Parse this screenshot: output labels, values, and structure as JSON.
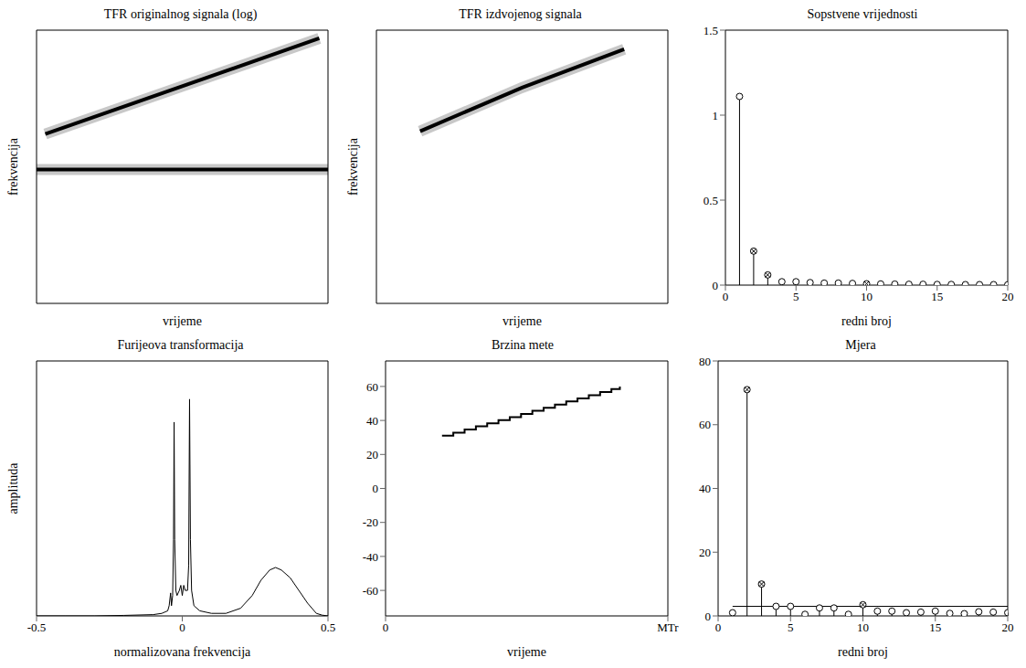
{
  "chart_data": [
    {
      "type": "tfr",
      "title": "TFR originalnog signala (log)",
      "xlabel": "vrijeme",
      "ylabel": "frekvencija",
      "xlim": [
        0,
        1
      ],
      "ylim": [
        0,
        1
      ],
      "tick_labels": false,
      "color": "#000000",
      "components": [
        {
          "x": [
            0.03,
            0.97
          ],
          "y": [
            0.62,
            0.97
          ]
        },
        {
          "x": [
            0,
            1
          ],
          "y": [
            0.49,
            0.49
          ]
        }
      ]
    },
    {
      "type": "tfr",
      "title": "TFR izdvojenog signala",
      "xlabel": "vrijeme",
      "ylabel": "frekvencija",
      "xlim": [
        0,
        1
      ],
      "ylim": [
        0,
        1
      ],
      "tick_labels": false,
      "color": "#000000",
      "components": [
        {
          "x": [
            0.15,
            0.5,
            0.85
          ],
          "y": [
            0.63,
            0.79,
            0.93
          ]
        }
      ]
    },
    {
      "type": "stem",
      "title": "Sopstvene vrijednosti",
      "xlabel": "redni broj",
      "xlim": [
        0,
        20
      ],
      "xticks": [
        0,
        5,
        10,
        15,
        20
      ],
      "ylim": [
        0,
        1.5
      ],
      "yticks": [
        0,
        0.5,
        1,
        1.5
      ],
      "marker": "circle",
      "color": "#000000",
      "x": [
        1,
        2,
        3,
        4,
        5,
        6,
        7,
        8,
        9,
        10,
        11,
        12,
        13,
        14,
        15,
        16,
        17,
        18,
        19,
        20
      ],
      "values": [
        1.11,
        0.2,
        0.06,
        0.02,
        0.02,
        0.015,
        0.012,
        0.012,
        0.01,
        0.008,
        0.007,
        0.006,
        0.005,
        0.005,
        0.004,
        0.004,
        0.003,
        0.003,
        0.003,
        0.002
      ],
      "selected": [
        2,
        3,
        10
      ]
    },
    {
      "type": "line",
      "title": "Furijeova transformacija",
      "xlabel": "normalizovana frekvencija",
      "ylabel": "amplituda",
      "xlim": [
        -0.5,
        0.5
      ],
      "xticks": [
        -0.5,
        0,
        0.5
      ],
      "ylim": [
        0,
        1
      ],
      "tick_labels": "x",
      "color": "#000000",
      "x": [
        -0.5,
        -0.4,
        -0.3,
        -0.2,
        -0.1,
        -0.07,
        -0.05,
        -0.045,
        -0.04,
        -0.037,
        -0.033,
        -0.03,
        -0.028,
        -0.026,
        -0.022,
        -0.018,
        -0.01,
        -0.005,
        0,
        0.005,
        0.01,
        0.018,
        0.022,
        0.025,
        0.028,
        0.032,
        0.04,
        0.06,
        0.1,
        0.15,
        0.2,
        0.24,
        0.27,
        0.3,
        0.32,
        0.34,
        0.37,
        0.4,
        0.43,
        0.46,
        0.48,
        0.5
      ],
      "values": [
        0,
        0,
        0,
        0.002,
        0.005,
        0.01,
        0.02,
        0.04,
        0.09,
        0.04,
        0.08,
        0.3,
        0.76,
        0.3,
        0.1,
        0.08,
        0.1,
        0.12,
        0.08,
        0.12,
        0.1,
        0.1,
        0.2,
        0.85,
        0.3,
        0.1,
        0.04,
        0.02,
        0.01,
        0.01,
        0.03,
        0.08,
        0.14,
        0.18,
        0.19,
        0.18,
        0.15,
        0.1,
        0.05,
        0.01,
        0.003,
        0
      ]
    },
    {
      "type": "line",
      "line_style": "step",
      "title": "Brzina mete",
      "xlabel": "vrijeme",
      "xlim": [
        0,
        1
      ],
      "xticks": [
        0,
        {
          "value": 1,
          "label": "MTr"
        }
      ],
      "ylim": [
        -75,
        75
      ],
      "yticks": [
        -60,
        -40,
        -20,
        0,
        20,
        40,
        60
      ],
      "color": "#000000",
      "x": [
        0.2,
        0.24,
        0.28,
        0.32,
        0.36,
        0.4,
        0.44,
        0.48,
        0.52,
        0.56,
        0.6,
        0.64,
        0.68,
        0.72,
        0.76,
        0.8,
        0.83
      ],
      "values": [
        31,
        32.8,
        34.7,
        36.5,
        38.3,
        40.2,
        42,
        43.8,
        45.7,
        47.5,
        49.3,
        51.2,
        53,
        54.8,
        56.7,
        58.5,
        60
      ]
    },
    {
      "type": "stem",
      "title": "Mjera",
      "xlabel": "redni broj",
      "xlim": [
        0,
        20
      ],
      "xticks": [
        0,
        5,
        10,
        15,
        20
      ],
      "ylim": [
        0,
        80
      ],
      "yticks": [
        0,
        20,
        40,
        60,
        80
      ],
      "marker": "circle",
      "color": "#000000",
      "x": [
        1,
        2,
        3,
        4,
        5,
        6,
        7,
        8,
        9,
        10,
        11,
        12,
        13,
        14,
        15,
        16,
        17,
        18,
        19,
        20
      ],
      "values": [
        1,
        71,
        10,
        3,
        3,
        0.5,
        2.5,
        2.5,
        0.5,
        3.5,
        1.5,
        1.5,
        1,
        1.2,
        1.5,
        0.8,
        0.7,
        1.3,
        1.2,
        1
      ],
      "selected": [
        2,
        3,
        10
      ],
      "threshold": 3
    }
  ]
}
